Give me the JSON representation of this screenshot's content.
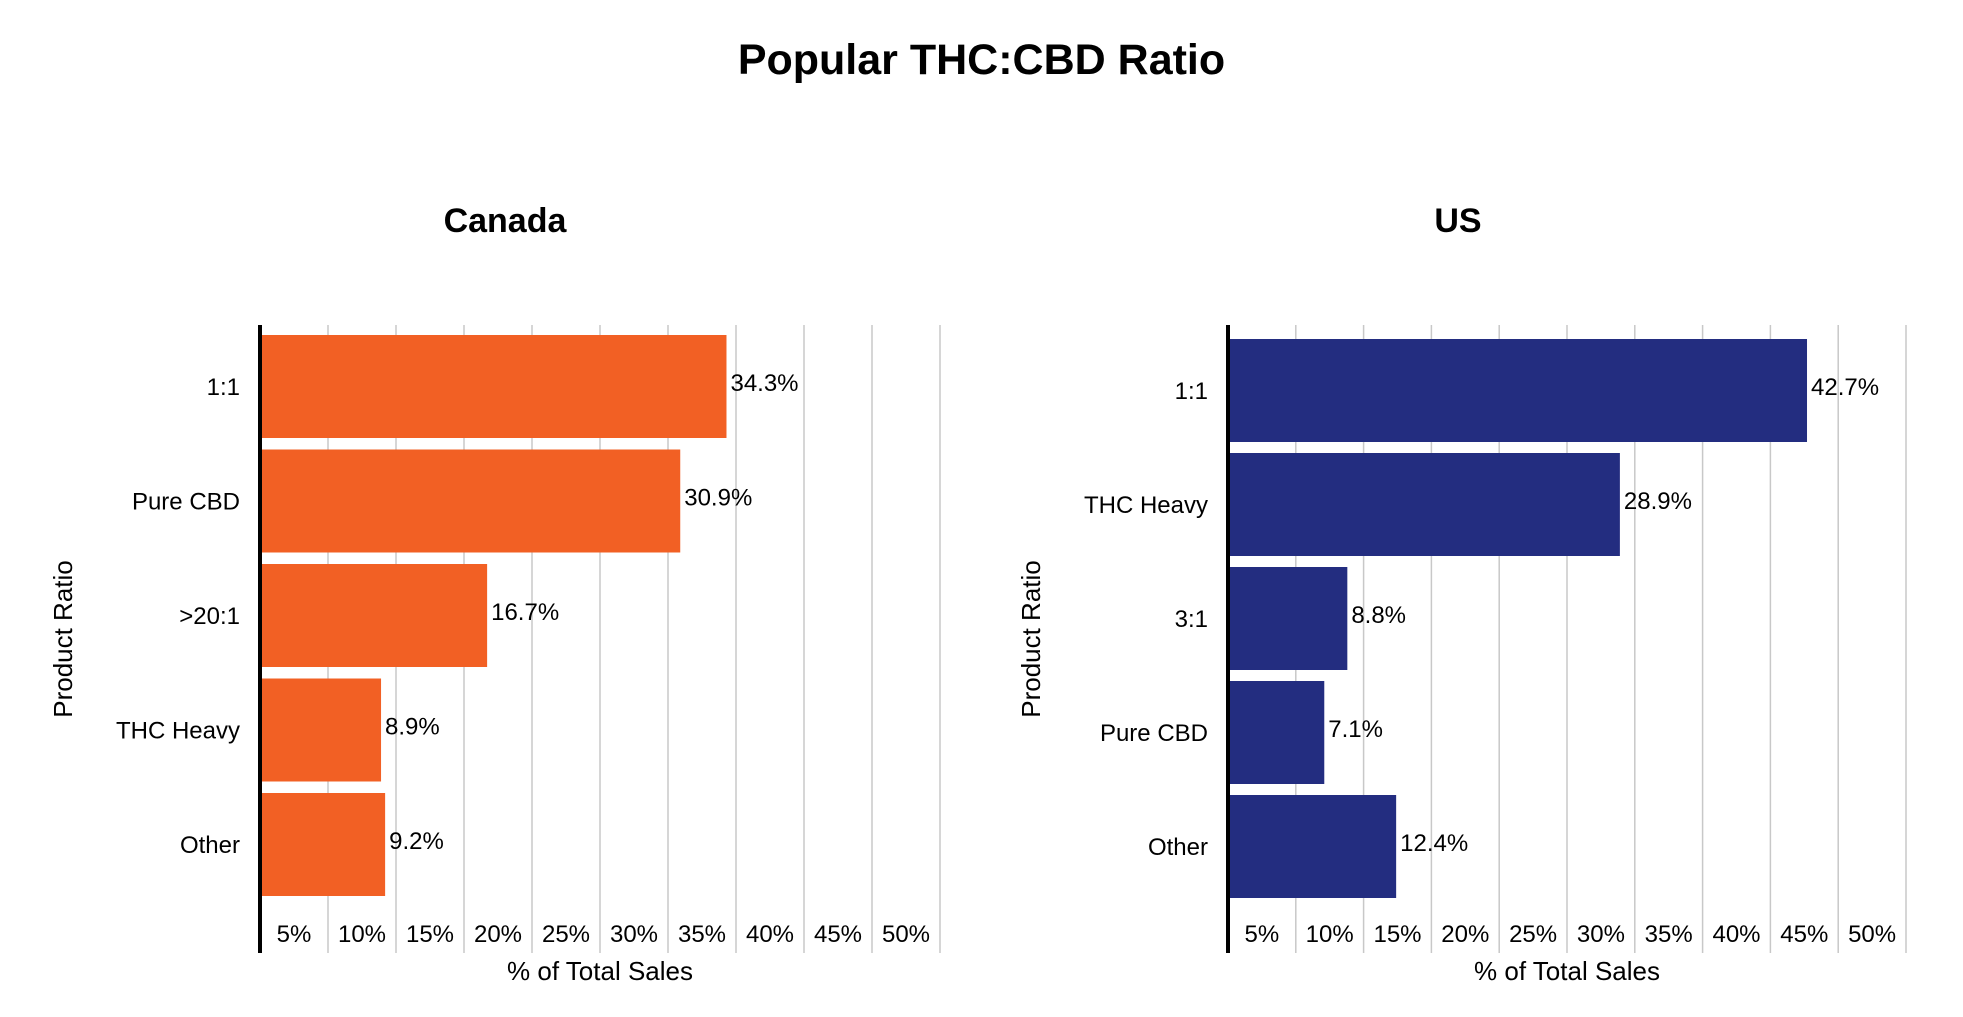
{
  "title": "Popular THC:CBD Ratio",
  "chart_data": [
    {
      "type": "bar",
      "orientation": "horizontal",
      "subtitle": "Canada",
      "categories": [
        "1:1",
        "Pure CBD",
        ">20:1",
        "THC Heavy",
        "Other"
      ],
      "values": [
        34.3,
        30.9,
        16.7,
        8.9,
        9.2
      ],
      "value_labels": [
        "34.3%",
        "30.9%",
        "16.7%",
        "8.9%",
        "9.2%"
      ],
      "xlabel": "% of Total Sales",
      "ylabel": "Product Ratio",
      "xlim": [
        0,
        50
      ],
      "xticks": [
        "5%",
        "10%",
        "15%",
        "20%",
        "25%",
        "30%",
        "35%",
        "40%",
        "45%",
        "50%"
      ],
      "color": "#F26024",
      "grid": true
    },
    {
      "type": "bar",
      "orientation": "horizontal",
      "subtitle": "US",
      "categories": [
        "1:1",
        "THC Heavy",
        "3:1",
        "Pure CBD",
        "Other"
      ],
      "values": [
        42.7,
        28.9,
        8.8,
        7.1,
        12.4
      ],
      "value_labels": [
        "42.7%",
        "28.9%",
        "8.8%",
        "7.1%",
        "12.4%"
      ],
      "xlabel": "% of Total Sales",
      "ylabel": "Product Ratio",
      "xlim": [
        0,
        50
      ],
      "xticks": [
        "5%",
        "10%",
        "15%",
        "20%",
        "25%",
        "30%",
        "35%",
        "40%",
        "45%",
        "50%"
      ],
      "color": "#232D80",
      "grid": true
    }
  ]
}
